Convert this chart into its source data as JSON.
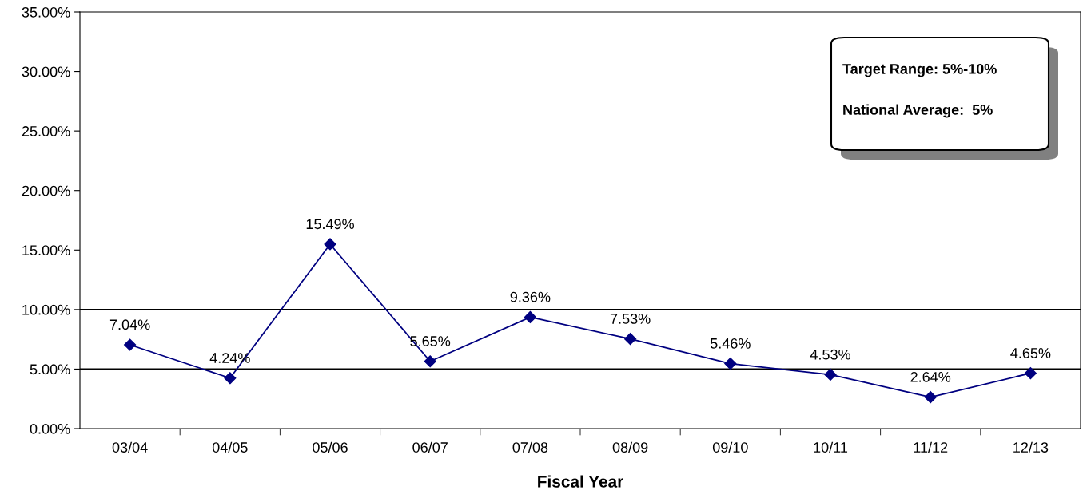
{
  "chart_data": {
    "type": "line",
    "xlabel": "Fiscal Year",
    "categories": [
      "03/04",
      "04/05",
      "05/06",
      "06/07",
      "07/08",
      "08/09",
      "09/10",
      "10/11",
      "11/12",
      "12/13"
    ],
    "series": [
      {
        "color": "#000080",
        "values": [
          7.04,
          4.24,
          15.49,
          5.65,
          9.36,
          7.53,
          5.46,
          4.53,
          2.64,
          4.65
        ],
        "value_labels": [
          "7.04%",
          "4.24%",
          "15.49%",
          "5.65%",
          "9.36%",
          "7.53%",
          "5.46%",
          "4.53%",
          "2.64%",
          "4.65%"
        ]
      }
    ],
    "ylim": [
      0,
      35
    ],
    "yticks": [
      {
        "value": 0,
        "label": "0.00%"
      },
      {
        "value": 5,
        "label": "5.00%"
      },
      {
        "value": 10,
        "label": "10.00%"
      },
      {
        "value": 15,
        "label": "15.00%"
      },
      {
        "value": 20,
        "label": "20.00%"
      },
      {
        "value": 25,
        "label": "25.00%"
      },
      {
        "value": 30,
        "label": "30.00%"
      },
      {
        "value": 35,
        "label": "35.00%"
      }
    ],
    "ref_lines": [
      {
        "axis": "y",
        "value": 10,
        "color": "#000000"
      },
      {
        "axis": "y",
        "value": 5,
        "color": "#000000"
      }
    ],
    "annotations": [
      "Target Range: 5%-10%",
      "National Average:  5%"
    ],
    "marker": "diamond",
    "line_style": "solid",
    "grid": false,
    "legend": false
  }
}
